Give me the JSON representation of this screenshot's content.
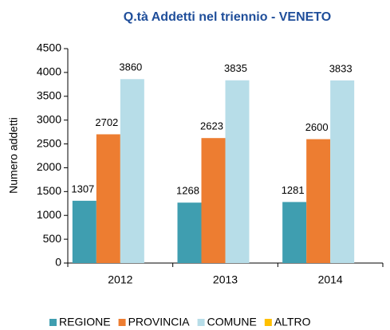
{
  "chart_data": {
    "type": "bar",
    "title": "Q.tà Addetti nel triennio - VENETO",
    "y_label": "Numero addetti",
    "categories": [
      "2012",
      "2013",
      "2014"
    ],
    "series": [
      {
        "name": "REGIONE",
        "color": "#3f9eb0",
        "values": [
          1307,
          1268,
          1281
        ]
      },
      {
        "name": "PROVINCIA",
        "color": "#ed7d31",
        "values": [
          2702,
          2623,
          2600
        ]
      },
      {
        "name": "COMUNE",
        "color": "#b7dde8",
        "values": [
          3860,
          3835,
          3833
        ]
      },
      {
        "name": "ALTRO",
        "color": "#ffc000",
        "values": [
          null,
          null,
          null
        ]
      }
    ],
    "ylim": [
      0,
      4500
    ],
    "yticks": [
      0,
      500,
      1000,
      1500,
      2000,
      2500,
      3000,
      3500,
      4000,
      4500
    ],
    "legend": "bottom",
    "grid": false
  }
}
